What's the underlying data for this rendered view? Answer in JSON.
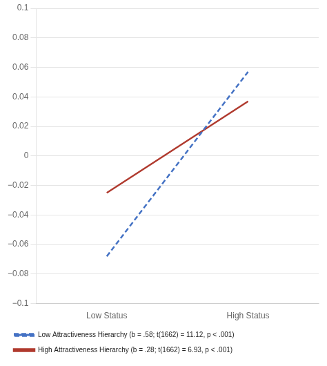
{
  "chart_data": {
    "type": "line",
    "categories": [
      "Low Status",
      "High Status"
    ],
    "series": [
      {
        "name": "Low Attractiveness Hierarchy (b = .58; t(1662) = 11.12, p < .001)",
        "color": "#4472C4",
        "line_style": "dashed",
        "values": [
          -0.068,
          0.057
        ]
      },
      {
        "name": "High Attractiveness Hierarchy (b = .28; t(1662) = 6.93, p < .001)",
        "color": "#B03A2E",
        "line_style": "solid",
        "values": [
          -0.025,
          0.037
        ]
      }
    ],
    "ylim": [
      -0.1,
      0.1
    ],
    "yticks": [
      {
        "value": -0.1,
        "label": "−0.1"
      },
      {
        "value": -0.08,
        "label": "−0.08"
      },
      {
        "value": -0.06,
        "label": "−0.06"
      },
      {
        "value": -0.04,
        "label": "−0.04"
      },
      {
        "value": -0.02,
        "label": "−0.02"
      },
      0,
      0.02,
      0.04,
      0.06,
      0.08,
      0.1
    ],
    "grid": true,
    "legend": "bottom"
  }
}
